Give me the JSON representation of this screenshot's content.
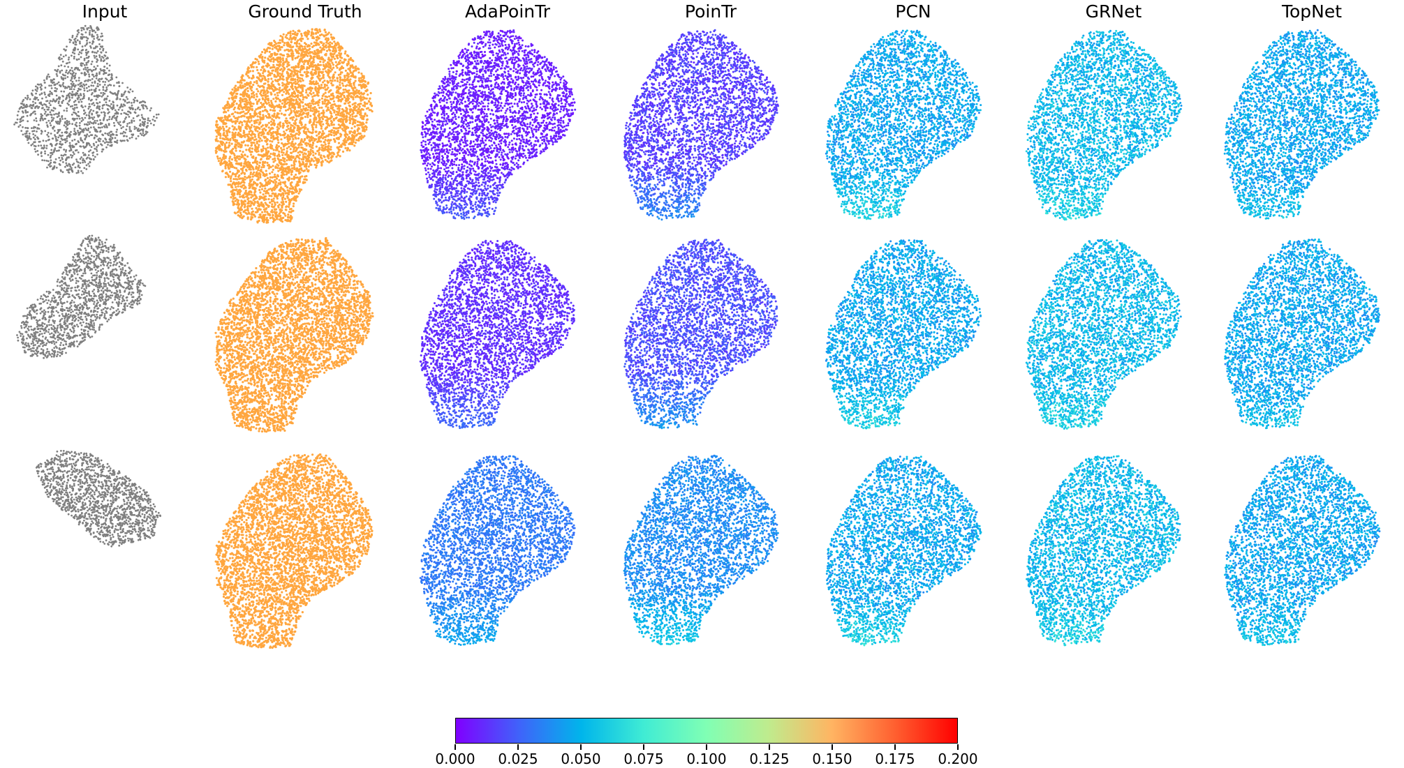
{
  "figure": {
    "columns": [
      {
        "key": "input",
        "title": "Input"
      },
      {
        "key": "gt",
        "title": "Ground Truth"
      },
      {
        "key": "adapointr",
        "title": "AdaPoinTr"
      },
      {
        "key": "pointr",
        "title": "PoinTr"
      },
      {
        "key": "pcn",
        "title": "PCN"
      },
      {
        "key": "grnet",
        "title": "GRNet"
      },
      {
        "key": "topnet",
        "title": "TopNet"
      }
    ],
    "rows": 3,
    "input_color": "#7f7f7f",
    "gt_color": "#ffa63f"
  },
  "colorbar": {
    "colormap": "rainbow",
    "colors": [
      "#8000ff",
      "#4062fa",
      "#00b5eb",
      "#40ecd4",
      "#80ffb4",
      "#c0eb8d",
      "#ffb462",
      "#ff6030",
      "#ff0000"
    ],
    "min": 0.0,
    "max": 0.2,
    "ticks": [
      "0.000",
      "0.025",
      "0.050",
      "0.075",
      "0.100",
      "0.125",
      "0.150",
      "0.175",
      "0.200"
    ]
  }
}
